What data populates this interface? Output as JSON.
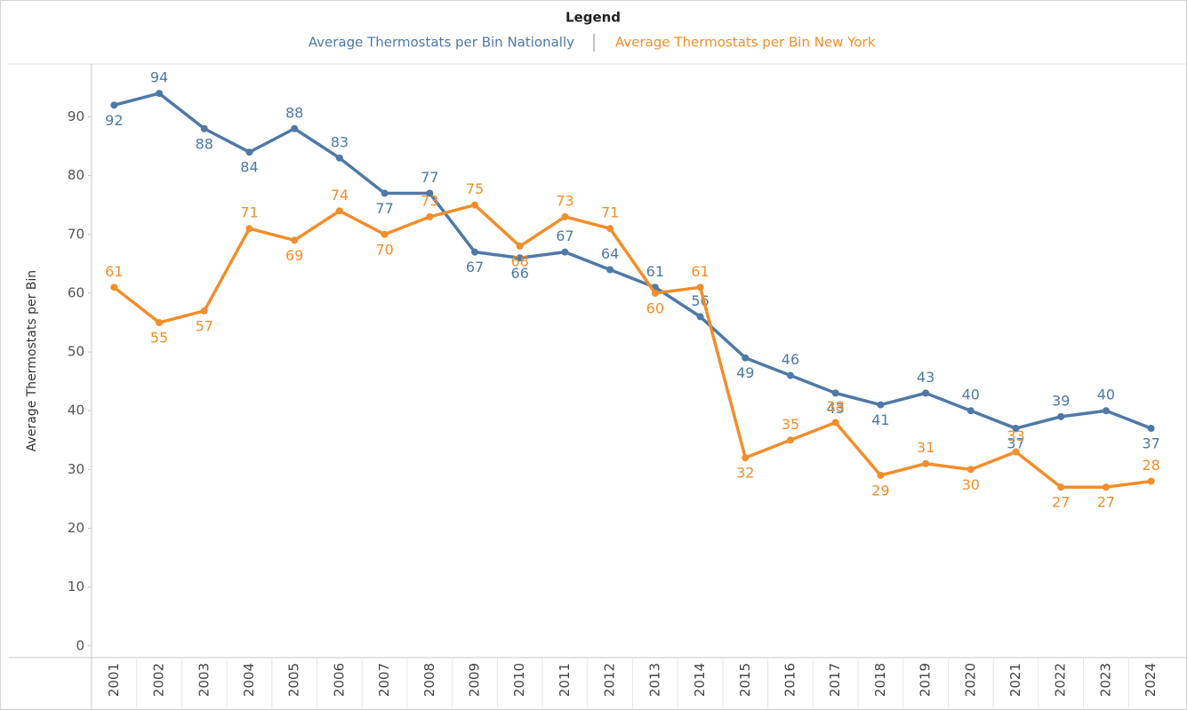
{
  "chart_data": {
    "type": "line",
    "legend_title": "Legend",
    "y_label": "Average Thermostats per Bin",
    "categories": [
      "2001",
      "2002",
      "2003",
      "2004",
      "2005",
      "2006",
      "2007",
      "2008",
      "2009",
      "2010",
      "2011",
      "2012",
      "2013",
      "2014",
      "2015",
      "2016",
      "2017",
      "2018",
      "2019",
      "2020",
      "2021",
      "2022",
      "2023",
      "2024"
    ],
    "series": [
      {
        "name": "Average Thermostats per Bin Nationally",
        "color": "#4e79a7",
        "values": [
          92,
          94,
          88,
          84,
          88,
          83,
          77,
          77,
          67,
          66,
          67,
          64,
          61,
          56,
          49,
          46,
          43,
          41,
          43,
          40,
          37,
          39,
          40,
          37
        ]
      },
      {
        "name": "Average Thermostats per Bin New York",
        "color": "#f28e2b",
        "values": [
          61,
          55,
          57,
          71,
          69,
          74,
          70,
          73,
          75,
          68,
          73,
          71,
          60,
          61,
          32,
          35,
          38,
          29,
          31,
          30,
          33,
          27,
          27,
          28
        ]
      }
    ],
    "ylim": [
      -2,
      99
    ],
    "yticks": [
      0,
      10,
      20,
      30,
      40,
      50,
      60,
      70,
      80,
      90
    ]
  }
}
